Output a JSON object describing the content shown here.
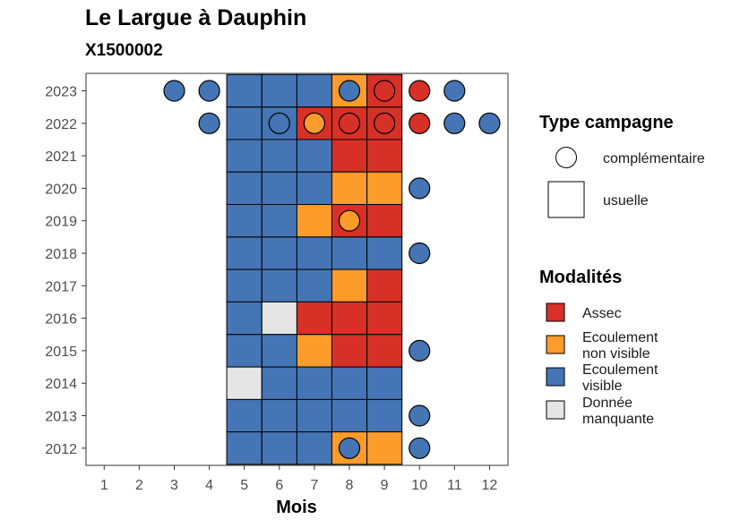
{
  "header": {
    "title": "Le Largue à Dauphin",
    "subtitle": "X1500002"
  },
  "legend_type": {
    "title": "Type campagne",
    "items": [
      {
        "label": "complémentaire",
        "shape": "circle"
      },
      {
        "label": "usuelle",
        "shape": "square"
      }
    ]
  },
  "legend_modalites": {
    "title": "Modalités",
    "items": [
      {
        "key": "A",
        "lines": [
          "Assec"
        ],
        "color": "#d73027"
      },
      {
        "key": "NV",
        "lines": [
          "Ecoulement",
          "non visible"
        ],
        "color": "#fd9b2b"
      },
      {
        "key": "V",
        "lines": [
          "Ecoulement",
          "visible"
        ],
        "color": "#4575b4"
      },
      {
        "key": "M",
        "lines": [
          "Donnée",
          "manquante"
        ],
        "color": "#e5e5e5"
      }
    ]
  },
  "chart_data": {
    "type": "heatmap",
    "title": "Le Largue à Dauphin",
    "subtitle": "X1500002",
    "xlabel": "Mois",
    "ylabel": "",
    "x_ticks": [
      1,
      2,
      3,
      4,
      5,
      6,
      7,
      8,
      9,
      10,
      11,
      12
    ],
    "y_ticks": [
      2012,
      2013,
      2014,
      2015,
      2016,
      2017,
      2018,
      2019,
      2020,
      2021,
      2022,
      2023
    ],
    "tiles_usuelle": [
      {
        "year": 2023,
        "values": {
          "5": "V",
          "6": "V",
          "7": "V",
          "8": "NV",
          "9": "A"
        }
      },
      {
        "year": 2022,
        "values": {
          "5": "V",
          "6": "V",
          "7": "A",
          "8": "A",
          "9": "A"
        }
      },
      {
        "year": 2021,
        "values": {
          "5": "V",
          "6": "V",
          "7": "V",
          "8": "A",
          "9": "A"
        }
      },
      {
        "year": 2020,
        "values": {
          "5": "V",
          "6": "V",
          "7": "V",
          "8": "NV",
          "9": "NV"
        }
      },
      {
        "year": 2019,
        "values": {
          "5": "V",
          "6": "V",
          "7": "NV",
          "8": "A",
          "9": "A"
        }
      },
      {
        "year": 2018,
        "values": {
          "5": "V",
          "6": "V",
          "7": "V",
          "8": "V",
          "9": "V"
        }
      },
      {
        "year": 2017,
        "values": {
          "5": "V",
          "6": "V",
          "7": "V",
          "8": "NV",
          "9": "A"
        }
      },
      {
        "year": 2016,
        "values": {
          "5": "V",
          "6": "M",
          "7": "A",
          "8": "A",
          "9": "A"
        }
      },
      {
        "year": 2015,
        "values": {
          "5": "V",
          "6": "V",
          "7": "NV",
          "8": "A",
          "9": "A"
        }
      },
      {
        "year": 2014,
        "values": {
          "5": "M",
          "6": "V",
          "7": "V",
          "8": "V",
          "9": "V"
        }
      },
      {
        "year": 2013,
        "values": {
          "5": "V",
          "6": "V",
          "7": "V",
          "8": "V",
          "9": "V"
        }
      },
      {
        "year": 2012,
        "values": {
          "5": "V",
          "6": "V",
          "7": "V",
          "8": "NV",
          "9": "NV"
        }
      }
    ],
    "points_complementaire": [
      {
        "year": 2023,
        "month": 3,
        "m": "V"
      },
      {
        "year": 2023,
        "month": 4,
        "m": "V"
      },
      {
        "year": 2023,
        "month": 8,
        "m": "V"
      },
      {
        "year": 2023,
        "month": 9,
        "m": "A"
      },
      {
        "year": 2023,
        "month": 10,
        "m": "A"
      },
      {
        "year": 2023,
        "month": 11,
        "m": "V"
      },
      {
        "year": 2022,
        "month": 4,
        "m": "V"
      },
      {
        "year": 2022,
        "month": 6,
        "m": "V"
      },
      {
        "year": 2022,
        "month": 7,
        "m": "NV"
      },
      {
        "year": 2022,
        "month": 8,
        "m": "A"
      },
      {
        "year": 2022,
        "month": 9,
        "m": "A"
      },
      {
        "year": 2022,
        "month": 10,
        "m": "A"
      },
      {
        "year": 2022,
        "month": 11,
        "m": "V"
      },
      {
        "year": 2022,
        "month": 12,
        "m": "V"
      },
      {
        "year": 2020,
        "month": 10,
        "m": "V"
      },
      {
        "year": 2019,
        "month": 8,
        "m": "NV"
      },
      {
        "year": 2018,
        "month": 10,
        "m": "V"
      },
      {
        "year": 2015,
        "month": 10,
        "m": "V"
      },
      {
        "year": 2013,
        "month": 10,
        "m": "V"
      },
      {
        "year": 2012,
        "month": 8,
        "m": "V"
      },
      {
        "year": 2012,
        "month": 10,
        "m": "V"
      }
    ],
    "colors": {
      "A": "#d73027",
      "NV": "#fd9b2b",
      "V": "#4575b4",
      "M": "#e5e5e5"
    },
    "grid": false,
    "legend_position": "right"
  }
}
